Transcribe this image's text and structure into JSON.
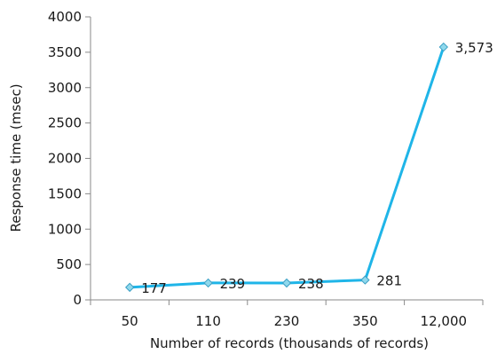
{
  "chart_data": {
    "type": "line",
    "categories": [
      "50",
      "110",
      "230",
      "350",
      "12,000"
    ],
    "values": [
      177,
      239,
      238,
      281,
      3573
    ],
    "data_labels": [
      "177",
      "239",
      "238",
      "281",
      "3,573"
    ],
    "xlabel": "Number of records (thousands of records)",
    "ylabel": "Response time (msec)",
    "ylim": [
      0,
      4000
    ],
    "yticks": [
      0,
      500,
      1000,
      1500,
      2000,
      2500,
      3000,
      3500,
      4000
    ],
    "grid": false,
    "legend": "none",
    "colors": {
      "line": "#1fb5e8",
      "marker_fill": "#8fd8ec",
      "marker_stroke": "#3a9fc4",
      "axis": "#8a8a8a"
    }
  }
}
